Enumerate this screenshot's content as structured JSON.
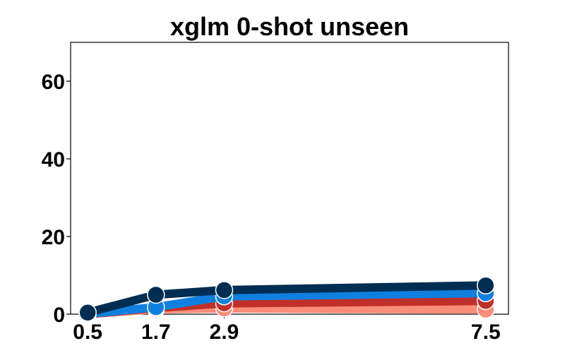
{
  "chart_data": {
    "type": "line",
    "title": "xglm 0-shot unseen",
    "xlabel": "",
    "ylabel": "",
    "x": [
      0.5,
      1.7,
      2.9,
      7.5
    ],
    "xticks": [
      "0.5",
      "1.7",
      "2.9",
      "7.5"
    ],
    "yticks": [
      "0",
      "20",
      "40",
      "60"
    ],
    "xlim": [
      0.2,
      7.9
    ],
    "ylim": [
      0,
      70
    ],
    "grid": false,
    "series": [
      {
        "color": "#fa8c7a",
        "values": [
          0.0,
          1.3,
          1.5,
          1.2
        ]
      },
      {
        "color": "#c0302a",
        "values": [
          0.0,
          1.6,
          2.8,
          3.4
        ]
      },
      {
        "color": "#1080e0",
        "values": [
          0.1,
          1.8,
          4.6,
          5.4
        ]
      },
      {
        "color": "#002d52",
        "values": [
          0.4,
          5.0,
          6.2,
          7.4
        ]
      }
    ]
  }
}
